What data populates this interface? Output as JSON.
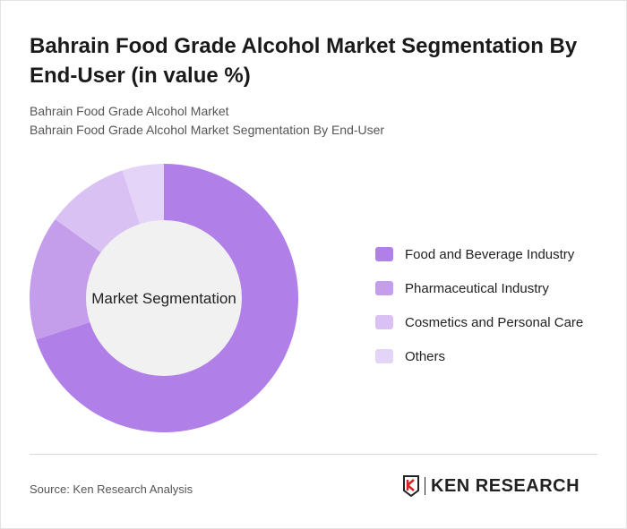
{
  "title": "Bahrain Food Grade Alcohol Market Segmentation By End-User (in value %)",
  "subtitle1": "Bahrain Food Grade Alcohol Market",
  "subtitle2": "Bahrain Food Grade Alcohol Market Segmentation By End-User",
  "source": "Source: Ken Research Analysis",
  "logo_text": "KEN RESEARCH",
  "chart_data": {
    "type": "pie",
    "variant": "donut",
    "center_label": "Market Segmentation",
    "categories": [
      "Food and Beverage Industry",
      "Pharmaceutical Industry",
      "Cosmetics and Personal Care",
      "Others"
    ],
    "values": [
      70,
      15,
      10,
      5
    ],
    "unit": "%",
    "colors": [
      "#b07fe8",
      "#c59eeb",
      "#d9c1f4",
      "#e4d4f7"
    ],
    "legend_position": "right"
  }
}
